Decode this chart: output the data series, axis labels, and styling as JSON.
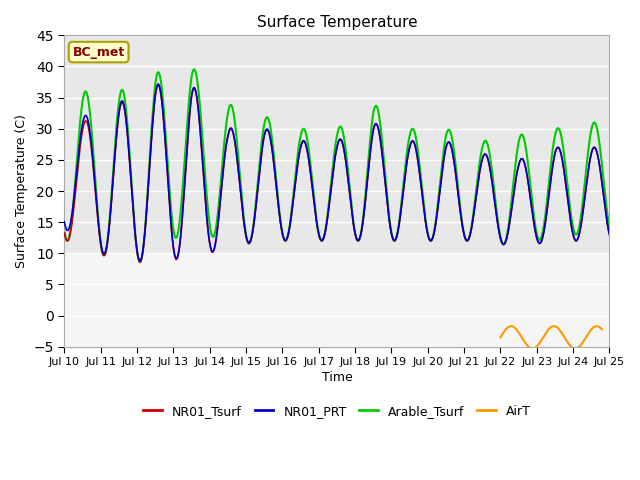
{
  "title": "Surface Temperature",
  "ylabel": "Surface Temperature (C)",
  "xlabel": "Time",
  "ylim": [
    -5,
    45
  ],
  "yticks": [
    -5,
    0,
    5,
    10,
    15,
    20,
    25,
    30,
    35,
    40,
    45
  ],
  "xtick_labels": [
    "Jul 10",
    "Jul 11",
    "Jul 12",
    "Jul 13",
    "Jul 14",
    "Jul 15",
    "Jul 16",
    "Jul 17",
    "Jul 18",
    "Jul 19",
    "Jul 20",
    "Jul 21",
    "Jul 22",
    "Jul 23",
    "Jul 24",
    "Jul 25"
  ],
  "annotation_text": "BC_met",
  "bg_color": "#e8e8e8",
  "bg_color_low": "#f5f5f5",
  "colors": {
    "NR01_Tsurf": "#cc0000",
    "NR01_PRT": "#0000cc",
    "Arable_Tsurf": "#00cc00",
    "AirT": "#ff9900"
  },
  "legend_entries": [
    "NR01_Tsurf",
    "NR01_PRT",
    "Arable_Tsurf",
    "AirT"
  ]
}
